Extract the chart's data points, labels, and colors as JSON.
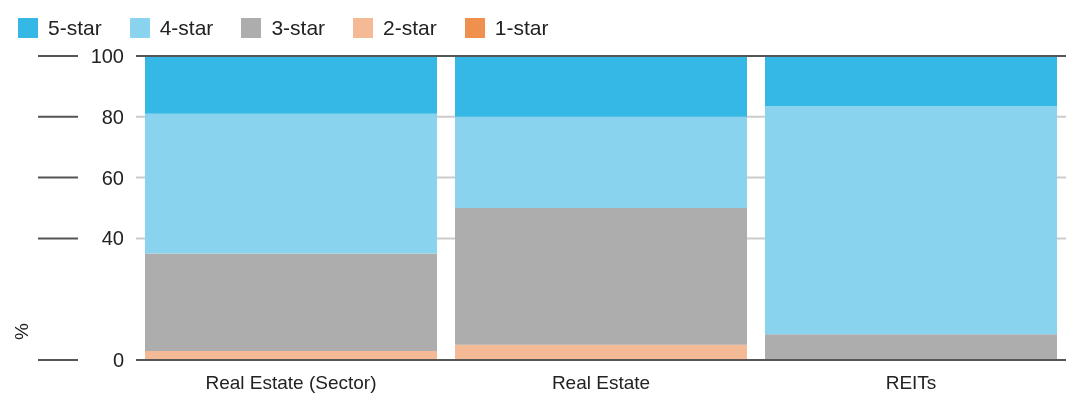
{
  "chart_data": {
    "type": "bar",
    "stacked": true,
    "ylabel": "%",
    "categories": [
      "Real Estate (Sector)",
      "Real Estate",
      "REITs"
    ],
    "series": [
      {
        "name": "1-star",
        "color": "#f0904e",
        "values": [
          0,
          0,
          0
        ]
      },
      {
        "name": "2-star",
        "color": "#f4b995",
        "values": [
          3,
          5,
          0
        ]
      },
      {
        "name": "3-star",
        "color": "#adadad",
        "values": [
          32,
          45,
          8.5
        ]
      },
      {
        "name": "4-star",
        "color": "#89d3ee",
        "values": [
          46,
          30,
          75
        ]
      },
      {
        "name": "5-star",
        "color": "#35b8e5",
        "values": [
          19,
          20,
          16.5
        ]
      }
    ],
    "ylim": [
      0,
      100
    ],
    "yticks": [
      0,
      40,
      60,
      80,
      100
    ],
    "grid": "y",
    "legend": "top left"
  }
}
